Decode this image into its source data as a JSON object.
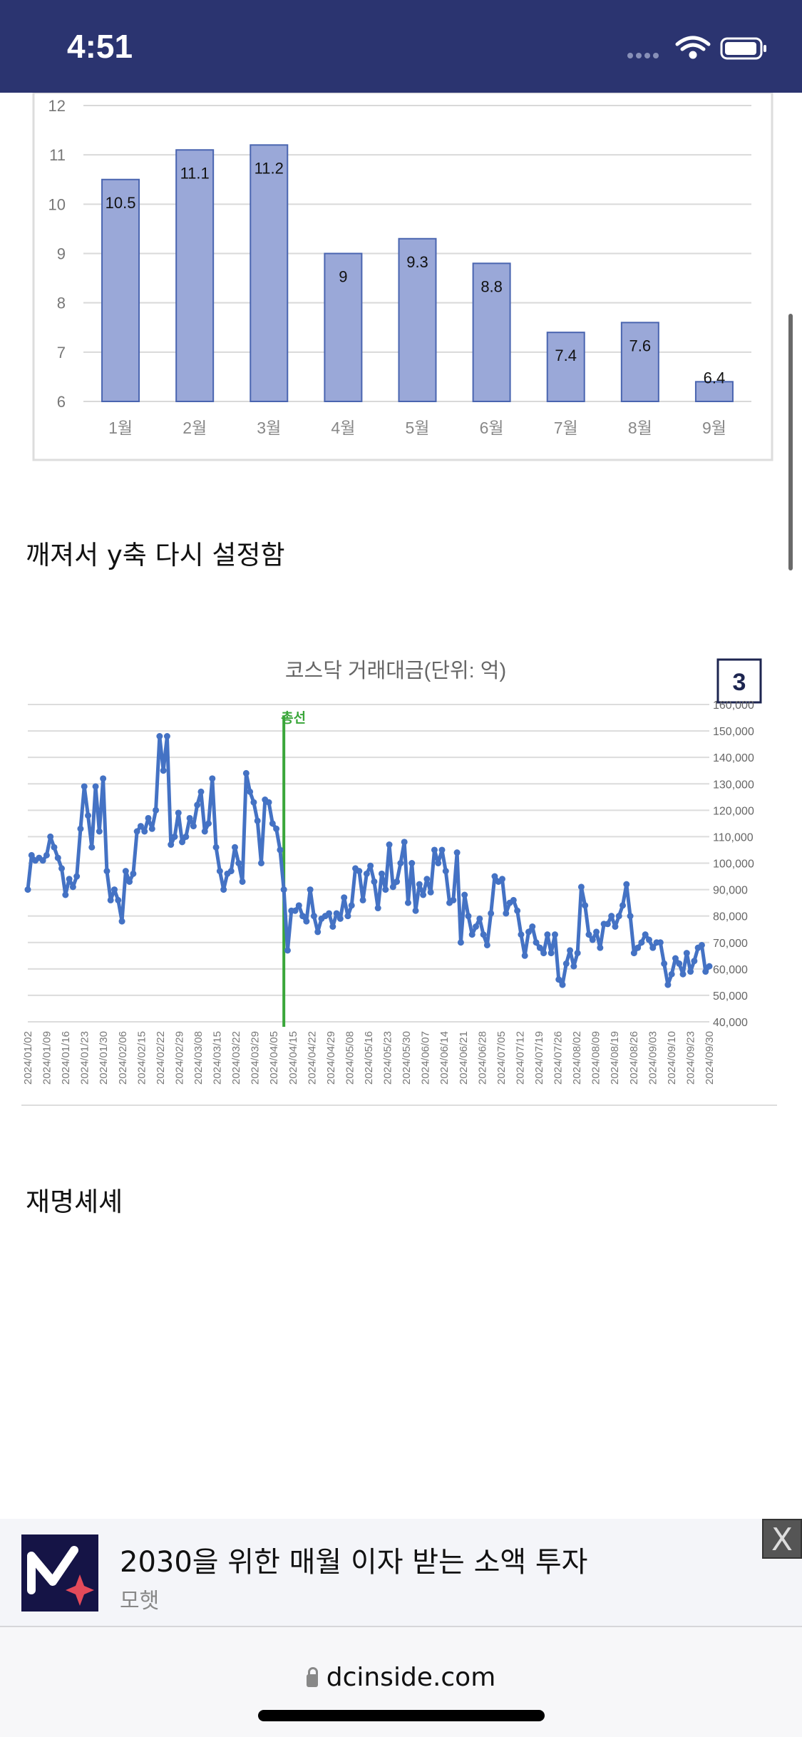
{
  "status_bar": {
    "time": "4:51",
    "icons": [
      "signal-dots-icon",
      "wifi-icon",
      "battery-icon"
    ]
  },
  "post": {
    "text_1": "깨져서 y축 다시 설정함",
    "text_2": "재명셰셰"
  },
  "chart_data": [
    {
      "type": "bar",
      "categories": [
        "1월",
        "2월",
        "3월",
        "4월",
        "5월",
        "6월",
        "7월",
        "8월",
        "9월"
      ],
      "values": [
        10.5,
        11.1,
        11.2,
        9,
        9.3,
        8.8,
        7.4,
        7.6,
        6.4
      ],
      "data_labels": [
        "10.5",
        "11.1",
        "11.2",
        "9",
        "9.3",
        "8.8",
        "7.4",
        "7.6",
        "6.4"
      ],
      "yticks": [
        "6",
        "7",
        "8",
        "9",
        "10",
        "11",
        "12"
      ],
      "ylim": [
        6,
        12
      ],
      "grid": true,
      "bar_color": "#9aa8d8"
    },
    {
      "type": "line",
      "title": "코스닥 거래대금(단위: 억)",
      "badge": "3",
      "ylim": [
        40000,
        160000
      ],
      "yticks": [
        "40,000",
        "50,000",
        "60,000",
        "70,000",
        "80,000",
        "90,000",
        "100,000",
        "110,000",
        "120,000",
        "130,000",
        "140,000",
        "150,000",
        "160,000"
      ],
      "xticks": [
        "2024/01/02",
        "2024/01/09",
        "2024/01/16",
        "2024/01/23",
        "2024/01/30",
        "2024/02/06",
        "2024/02/15",
        "2024/02/22",
        "2024/02/29",
        "2024/03/08",
        "2024/03/15",
        "2024/03/22",
        "2024/03/29",
        "2024/04/05",
        "2024/04/15",
        "2024/04/22",
        "2024/04/29",
        "2024/05/08",
        "2024/05/16",
        "2024/05/23",
        "2024/05/30",
        "2024/06/07",
        "2024/06/14",
        "2024/06/21",
        "2024/06/28",
        "2024/07/05",
        "2024/07/12",
        "2024/07/19",
        "2024/07/26",
        "2024/08/02",
        "2024/08/09",
        "2024/08/19",
        "2024/08/26",
        "2024/09/03",
        "2024/09/10",
        "2024/09/23",
        "2024/09/30"
      ],
      "marker": {
        "label": "총선",
        "point_index": 68,
        "color": "#3aa63a"
      },
      "line_color": "#4472c4",
      "grid": true,
      "values": [
        90000,
        103000,
        101000,
        102000,
        101000,
        103000,
        110000,
        106000,
        102000,
        98000,
        88000,
        94000,
        91000,
        95000,
        113000,
        129000,
        118000,
        106000,
        129000,
        112000,
        132000,
        97000,
        86000,
        90000,
        86000,
        78000,
        97000,
        93000,
        96000,
        112000,
        114000,
        112000,
        117000,
        113000,
        120000,
        148000,
        135000,
        148000,
        107000,
        110000,
        119000,
        108000,
        110000,
        117000,
        114000,
        122000,
        127000,
        112000,
        115000,
        132000,
        106000,
        97000,
        90000,
        96000,
        97000,
        106000,
        100000,
        93000,
        134000,
        127000,
        123000,
        116000,
        100000,
        124000,
        123000,
        115000,
        113000,
        105000,
        90000,
        67000,
        82000,
        82000,
        84000,
        80000,
        78000,
        90000,
        80000,
        74000,
        79000,
        80000,
        81000,
        76000,
        81000,
        79000,
        87000,
        80000,
        84000,
        98000,
        97000,
        86000,
        96000,
        99000,
        93000,
        83000,
        96000,
        90000,
        107000,
        91000,
        93000,
        100000,
        108000,
        85000,
        100000,
        82000,
        92000,
        88000,
        94000,
        89000,
        105000,
        100000,
        105000,
        97000,
        85000,
        86000,
        104000,
        70000,
        88000,
        80000,
        73000,
        76000,
        79000,
        73000,
        69000,
        81000,
        95000,
        93000,
        94000,
        81000,
        85000,
        86000,
        82000,
        73000,
        65000,
        74000,
        76000,
        70000,
        68000,
        66000,
        73000,
        66000,
        73000,
        56000,
        54000,
        62000,
        67000,
        61000,
        66000,
        91000,
        84000,
        73000,
        71000,
        74000,
        68000,
        77000,
        77000,
        80000,
        76000,
        80000,
        84000,
        92000,
        80000,
        66000,
        68000,
        70000,
        73000,
        71000,
        68000,
        70000,
        70000,
        62000,
        54000,
        58000,
        64000,
        62000,
        58000,
        66000,
        59000,
        63000,
        68000,
        69000,
        59000,
        61000
      ]
    }
  ],
  "ad": {
    "title": "2030을 위한 매월 이자 받는 소액 투자",
    "advertiser": "모햇",
    "logo_letter": "M",
    "close_label": "X"
  },
  "browser": {
    "url": "dcinside.com"
  }
}
